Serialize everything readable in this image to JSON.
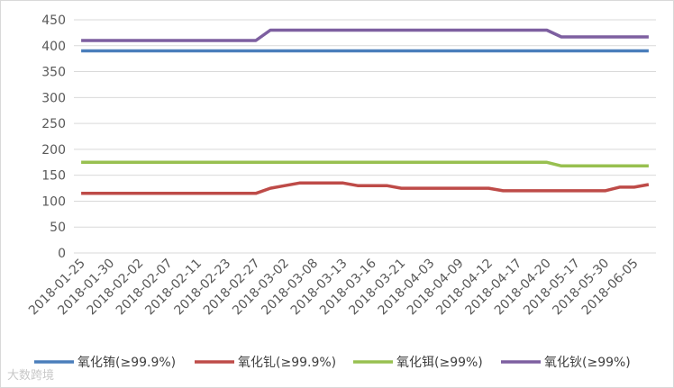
{
  "chart_data": {
    "type": "line",
    "categories": [
      "2018-01-25",
      null,
      "2018-01-30",
      null,
      "2018-02-02",
      null,
      "2018-02-07",
      null,
      "2018-02-11",
      null,
      "2018-02-23",
      null,
      "2018-02-27",
      null,
      "2018-03-02",
      null,
      "2018-03-08",
      null,
      "2018-03-13",
      null,
      "2018-03-16",
      null,
      "2018-03-21",
      null,
      "2018-04-03",
      null,
      "2018-04-09",
      null,
      "2018-04-12",
      null,
      "2018-04-17",
      null,
      "2018-04-20",
      null,
      "2018-05-17",
      null,
      "2018-05-30",
      null,
      "2018-06-05",
      null
    ],
    "series": [
      {
        "name": "氧化铕(≥99.9%)",
        "color": "#4a7ebb",
        "values": [
          390,
          390,
          390,
          390,
          390,
          390,
          390,
          390,
          390,
          390,
          390,
          390,
          390,
          390,
          390,
          390,
          390,
          390,
          390,
          390,
          390,
          390,
          390,
          390,
          390,
          390,
          390,
          390,
          390,
          390,
          390,
          390,
          390,
          390,
          390,
          390,
          390,
          390,
          390,
          390
        ]
      },
      {
        "name": "氧化钆(≥99.9%)",
        "color": "#be4b48",
        "values": [
          115,
          115,
          115,
          115,
          115,
          115,
          115,
          115,
          115,
          115,
          115,
          115,
          115,
          125,
          130,
          135,
          135,
          135,
          135,
          130,
          130,
          130,
          125,
          125,
          125,
          125,
          125,
          125,
          125,
          120,
          120,
          120,
          120,
          120,
          120,
          120,
          120,
          127,
          127,
          132
        ]
      },
      {
        "name": "氧化铒(≥99%)",
        "color": "#98c050",
        "values": [
          175,
          175,
          175,
          175,
          175,
          175,
          175,
          175,
          175,
          175,
          175,
          175,
          175,
          175,
          175,
          175,
          175,
          175,
          175,
          175,
          175,
          175,
          175,
          175,
          175,
          175,
          175,
          175,
          175,
          175,
          175,
          175,
          175,
          168,
          168,
          168,
          168,
          168,
          168,
          168
        ]
      },
      {
        "name": "氧化钬(≥99%)",
        "color": "#7d5fa0",
        "values": [
          410,
          410,
          410,
          410,
          410,
          410,
          410,
          410,
          410,
          410,
          410,
          410,
          410,
          430,
          430,
          430,
          430,
          430,
          430,
          430,
          430,
          430,
          430,
          430,
          430,
          430,
          430,
          430,
          430,
          430,
          430,
          430,
          430,
          417,
          417,
          417,
          417,
          417,
          417,
          417
        ]
      }
    ],
    "ylim": [
      0,
      450
    ],
    "yticks": [
      0,
      50,
      100,
      150,
      200,
      250,
      300,
      350,
      400,
      450
    ],
    "grid": true,
    "legend": "bottom",
    "watermark": "大数跨境"
  }
}
